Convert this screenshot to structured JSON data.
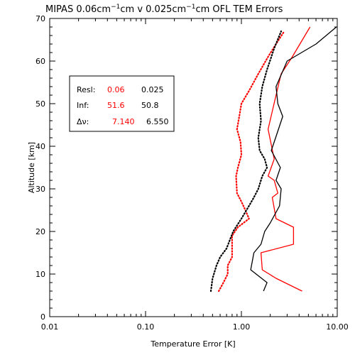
{
  "chart_data": {
    "type": "line",
    "title_parts": [
      "MIPAS 0.06cm",
      "−1",
      "cm v 0.025cm",
      "−1",
      "cm OFL TEM Errors"
    ],
    "xlabel": "Temperature Error [K]",
    "ylabel": "Altitude [km]",
    "xscale": "log",
    "xlim": [
      0.01,
      10.0
    ],
    "ylim": [
      0,
      70
    ],
    "xticks": [
      0.01,
      0.1,
      1.0,
      10.0
    ],
    "xtick_labels": [
      "0.01",
      "0.10",
      "1.00",
      "10.00"
    ],
    "yticks": [
      0,
      10,
      20,
      30,
      40,
      50,
      60,
      70
    ],
    "ytick_labels": [
      "0",
      "10",
      "20",
      "30",
      "40",
      "50",
      "60",
      "70"
    ],
    "grid": false,
    "colors": {
      "red": "#ff0000",
      "black": "#000000"
    },
    "legend": {
      "placement": "upper-left",
      "rows": [
        {
          "label": "Resl:",
          "red": "0.06",
          "black": "0.025"
        },
        {
          "label": "Inf:",
          "red": "51.6",
          "black": "50.8"
        },
        {
          "label": "Δν:",
          "red": "7.140",
          "black": "6.550"
        }
      ]
    },
    "series": [
      {
        "color": "red",
        "style": "solid",
        "points": [
          [
            4.3,
            6
          ],
          [
            2.3,
            9
          ],
          [
            1.65,
            11
          ],
          [
            1.6,
            15
          ],
          [
            3.5,
            17
          ],
          [
            3.5,
            21
          ],
          [
            2.3,
            23
          ],
          [
            2.1,
            28
          ],
          [
            2.4,
            29
          ],
          [
            2.2,
            32
          ],
          [
            1.9,
            33
          ],
          [
            2.2,
            37
          ],
          [
            1.9,
            44
          ],
          [
            2.3,
            52
          ],
          [
            2.6,
            57
          ],
          [
            3.4,
            61
          ],
          [
            5.2,
            68
          ]
        ]
      },
      {
        "color": "black",
        "style": "solid",
        "points": [
          [
            1.7,
            6
          ],
          [
            1.85,
            8
          ],
          [
            1.25,
            11
          ],
          [
            1.35,
            15
          ],
          [
            1.6,
            17
          ],
          [
            1.75,
            20
          ],
          [
            2.0,
            22
          ],
          [
            2.5,
            26
          ],
          [
            2.6,
            30
          ],
          [
            2.3,
            32
          ],
          [
            2.55,
            35
          ],
          [
            2.05,
            39
          ],
          [
            2.2,
            41
          ],
          [
            2.7,
            47
          ],
          [
            2.4,
            50
          ],
          [
            2.3,
            54
          ],
          [
            3.0,
            60
          ],
          [
            6.0,
            64
          ],
          [
            9.8,
            68
          ]
        ]
      },
      {
        "color": "red",
        "style": "dotted",
        "points": [
          [
            0.58,
            6
          ],
          [
            0.65,
            8
          ],
          [
            0.72,
            10
          ],
          [
            0.72,
            12
          ],
          [
            0.8,
            14
          ],
          [
            0.8,
            19
          ],
          [
            0.92,
            21
          ],
          [
            1.2,
            23
          ],
          [
            1.1,
            25
          ],
          [
            1.0,
            27
          ],
          [
            0.9,
            29
          ],
          [
            0.88,
            33
          ],
          [
            0.92,
            35
          ],
          [
            1.0,
            38
          ],
          [
            0.98,
            41
          ],
          [
            0.9,
            44
          ],
          [
            0.95,
            47
          ],
          [
            1.0,
            50
          ],
          [
            1.2,
            53
          ],
          [
            1.5,
            57
          ],
          [
            1.9,
            61
          ],
          [
            2.3,
            64
          ],
          [
            2.8,
            67
          ]
        ]
      },
      {
        "color": "black",
        "style": "dotted",
        "points": [
          [
            0.48,
            6
          ],
          [
            0.5,
            9
          ],
          [
            0.55,
            12
          ],
          [
            0.6,
            14
          ],
          [
            0.7,
            16
          ],
          [
            0.82,
            20
          ],
          [
            1.0,
            23
          ],
          [
            1.2,
            26
          ],
          [
            1.35,
            28
          ],
          [
            1.5,
            30
          ],
          [
            1.65,
            33
          ],
          [
            1.85,
            35
          ],
          [
            1.75,
            37
          ],
          [
            1.55,
            39
          ],
          [
            1.5,
            42
          ],
          [
            1.6,
            46
          ],
          [
            1.55,
            50
          ],
          [
            1.65,
            54
          ],
          [
            1.85,
            58
          ],
          [
            2.2,
            63
          ],
          [
            2.6,
            67
          ]
        ]
      }
    ]
  }
}
